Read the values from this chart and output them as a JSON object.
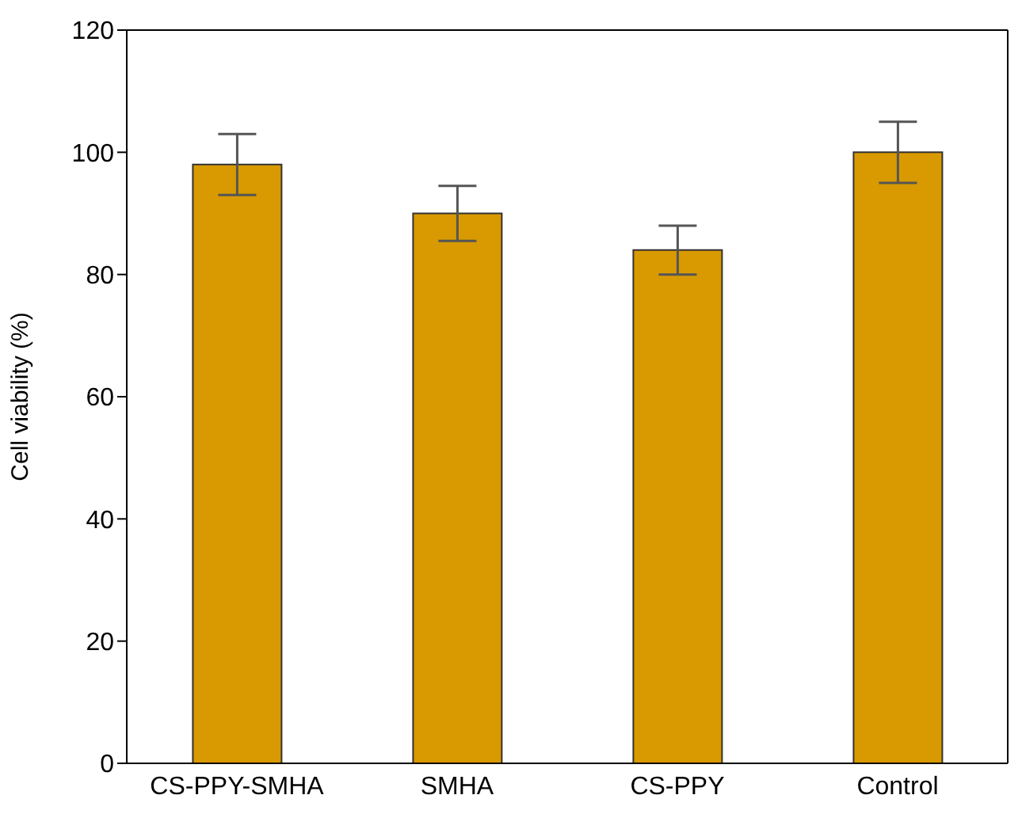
{
  "chart_data": {
    "type": "bar",
    "ylabel": "Cell viability (%)",
    "categories": [
      "CS-PPY-SMHA",
      "SMHA",
      "CS-PPY",
      "Control"
    ],
    "values": [
      98,
      90,
      84,
      100
    ],
    "errors": [
      5,
      4.5,
      4,
      5
    ],
    "color": "#d89a00",
    "ylim": [
      0,
      120
    ],
    "yticks": [
      0,
      20,
      40,
      60,
      80,
      100,
      120
    ],
    "grid": false
  }
}
